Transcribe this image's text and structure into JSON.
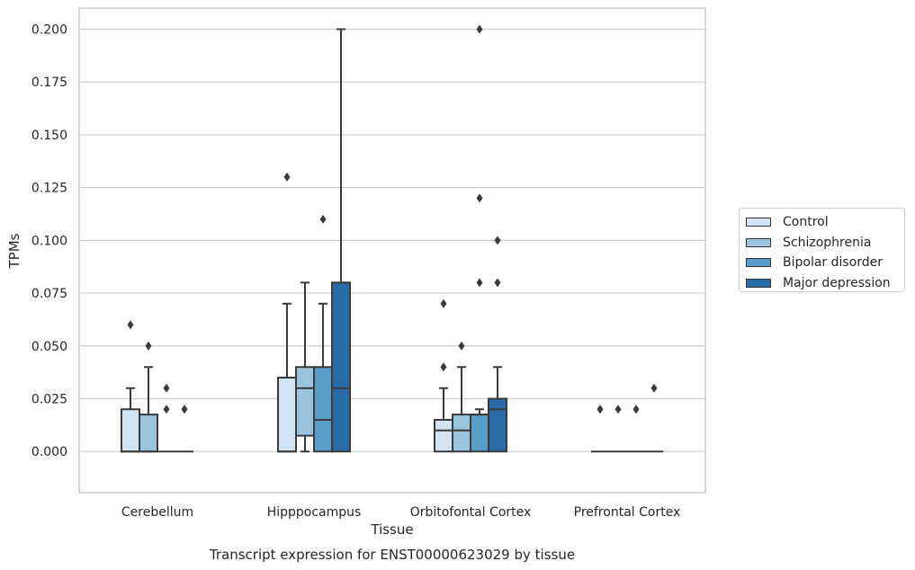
{
  "chart_data": {
    "type": "box",
    "title": "Transcript expression for ENST00000623029 by tissue",
    "xlabel": "Tissue",
    "ylabel": "TPMs",
    "ylim": [
      -0.0195,
      0.21
    ],
    "yticks": [
      "0.000",
      "0.025",
      "0.050",
      "0.075",
      "0.100",
      "0.125",
      "0.150",
      "0.175",
      "0.200"
    ],
    "categories": [
      "Cerebellum",
      "Hipppocampus",
      "Orbitofontal Cortex",
      "Prefrontal Cortex"
    ],
    "grid": true,
    "legend_position": "right",
    "series": [
      {
        "name": "Control",
        "color": "#d3e3f1",
        "boxes": [
          {
            "q1": 0,
            "median": 0,
            "q3": 0.02,
            "whisker_low": 0,
            "whisker_high": 0.03,
            "outliers": [
              0.06
            ]
          },
          {
            "q1": 0,
            "median": 0,
            "q3": 0.035,
            "whisker_low": 0,
            "whisker_high": 0.07,
            "outliers": [
              0.13
            ]
          },
          {
            "q1": 0,
            "median": 0.01,
            "q3": 0.015,
            "whisker_low": 0,
            "whisker_high": 0.03,
            "outliers": [
              0.04,
              0.07
            ]
          },
          {
            "q1": 0,
            "median": 0,
            "q3": 0,
            "whisker_low": 0,
            "whisker_high": 0,
            "outliers": [
              0.02
            ]
          }
        ]
      },
      {
        "name": "Schizophrenia",
        "color": "#9ac3de",
        "boxes": [
          {
            "q1": 0,
            "median": 0,
            "q3": 0.0175,
            "whisker_low": 0,
            "whisker_high": 0.04,
            "outliers": [
              0.05
            ]
          },
          {
            "q1": 0.0075,
            "median": 0.03,
            "q3": 0.04,
            "whisker_low": 0,
            "whisker_high": 0.08,
            "outliers": []
          },
          {
            "q1": 0,
            "median": 0.01,
            "q3": 0.0175,
            "whisker_low": 0,
            "whisker_high": 0.04,
            "outliers": [
              0.05
            ]
          },
          {
            "q1": 0,
            "median": 0,
            "q3": 0,
            "whisker_low": 0,
            "whisker_high": 0,
            "outliers": [
              0.02
            ]
          }
        ]
      },
      {
        "name": "Bipolar disorder",
        "color": "#5a9dc8",
        "boxes": [
          {
            "q1": 0,
            "median": 0,
            "q3": 0,
            "whisker_low": 0,
            "whisker_high": 0,
            "outliers": [
              0.02,
              0.03
            ]
          },
          {
            "q1": 0,
            "median": 0.015,
            "q3": 0.04,
            "whisker_low": 0,
            "whisker_high": 0.07,
            "outliers": [
              0.11
            ]
          },
          {
            "q1": 0,
            "median": 0.0175,
            "q3": 0.0175,
            "whisker_low": 0,
            "whisker_high": 0.02,
            "outliers": [
              0.08,
              0.12,
              0.2
            ]
          },
          {
            "q1": 0,
            "median": 0,
            "q3": 0,
            "whisker_low": 0,
            "whisker_high": 0,
            "outliers": [
              0.02
            ]
          }
        ]
      },
      {
        "name": "Major depression",
        "color": "#2a6aa6",
        "boxes": [
          {
            "q1": 0,
            "median": 0,
            "q3": 0,
            "whisker_low": 0,
            "whisker_high": 0,
            "outliers": [
              0.02
            ]
          },
          {
            "q1": 0,
            "median": 0.03,
            "q3": 0.08,
            "whisker_low": 0,
            "whisker_high": 0.2,
            "outliers": []
          },
          {
            "q1": 0,
            "median": 0.02,
            "q3": 0.025,
            "whisker_low": 0,
            "whisker_high": 0.04,
            "outliers": [
              0.08,
              0.1
            ]
          },
          {
            "q1": 0,
            "median": 0,
            "q3": 0,
            "whisker_low": 0,
            "whisker_high": 0,
            "outliers": [
              0.03
            ]
          }
        ]
      }
    ]
  }
}
